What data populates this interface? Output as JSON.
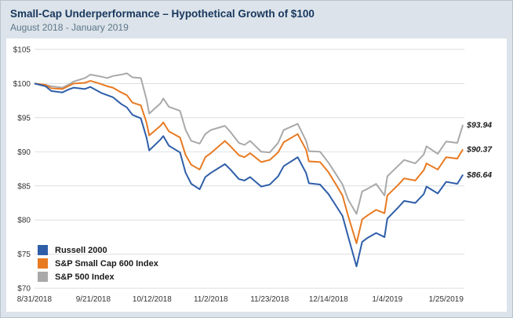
{
  "header": {
    "title": "Small-Cap Underperformance – Hypothetical Growth of $100",
    "subtitle": "August 2018 - January 2019"
  },
  "colors": {
    "background": "#dce3ea",
    "card": "#ffffff",
    "title": "#17375d",
    "subtitle": "#5d7789",
    "grid": "#d9dde1",
    "axis_text": "#333333",
    "end_label": "#1a1a1a"
  },
  "chart_data": {
    "type": "line",
    "title": "Small-Cap Underperformance – Hypothetical Growth of $100",
    "subtitle": "August 2018 - January 2019",
    "xlabel": "",
    "ylabel": "",
    "ylim": [
      70,
      105
    ],
    "y_tick_step": 5,
    "y_tick_prefix": "$",
    "grid": "horizontal",
    "legend_position": "lower-left",
    "x_tick_labels": [
      "8/31/2018",
      "9/21/2018",
      "10/12/2018",
      "11/2/2018",
      "11/23/2018",
      "12/14/2018",
      "1/4/2019",
      "1/25/2019"
    ],
    "dates": [
      "2018-08-31",
      "2018-09-04",
      "2018-09-06",
      "2018-09-10",
      "2018-09-12",
      "2018-09-14",
      "2018-09-18",
      "2018-09-20",
      "2018-09-24",
      "2018-09-26",
      "2018-09-28",
      "2018-10-01",
      "2018-10-03",
      "2018-10-05",
      "2018-10-08",
      "2018-10-10",
      "2018-10-11",
      "2018-10-15",
      "2018-10-16",
      "2018-10-18",
      "2018-10-22",
      "2018-10-24",
      "2018-10-26",
      "2018-10-29",
      "2018-10-31",
      "2018-11-02",
      "2018-11-07",
      "2018-11-09",
      "2018-11-12",
      "2018-11-14",
      "2018-11-16",
      "2018-11-20",
      "2018-11-23",
      "2018-11-26",
      "2018-11-28",
      "2018-12-03",
      "2018-12-06",
      "2018-12-07",
      "2018-12-11",
      "2018-12-14",
      "2018-12-17",
      "2018-12-19",
      "2018-12-21",
      "2018-12-24",
      "2018-12-26",
      "2018-12-28",
      "2018-12-31",
      "2019-01-03",
      "2019-01-04",
      "2019-01-08",
      "2019-01-10",
      "2019-01-14",
      "2019-01-17",
      "2019-01-18",
      "2019-01-22",
      "2019-01-25",
      "2019-01-29",
      "2019-01-31"
    ],
    "series": [
      {
        "name": "Russell 2000",
        "color": "#2e5ea8",
        "end_label": "$86.64",
        "end_value": 86.64,
        "values": [
          100,
          99.6,
          98.9,
          98.7,
          99.1,
          99.4,
          99.2,
          99.5,
          98.6,
          98.3,
          98.0,
          97.0,
          96.5,
          95.4,
          94.9,
          92.1,
          90.2,
          91.8,
          92.3,
          90.9,
          89.9,
          86.9,
          85.3,
          84.5,
          86.3,
          86.9,
          88.2,
          87.4,
          86.0,
          85.8,
          86.3,
          84.9,
          85.2,
          86.4,
          87.9,
          89.2,
          86.9,
          85.4,
          85.2,
          83.8,
          81.9,
          80.6,
          77.6,
          73.2,
          76.8,
          77.4,
          78.1,
          77.5,
          80.2,
          81.9,
          82.8,
          82.5,
          83.8,
          84.9,
          83.9,
          85.6,
          85.3,
          86.64
        ]
      },
      {
        "name": "S&P Small Cap 600 Index",
        "color": "#e87a22",
        "end_label": "$90.37",
        "end_value": 90.37,
        "values": [
          100,
          99.8,
          99.3,
          99.2,
          99.6,
          100.0,
          100.1,
          100.4,
          99.9,
          99.6,
          99.4,
          98.7,
          98.3,
          97.2,
          96.8,
          94.3,
          92.4,
          93.8,
          94.3,
          93.0,
          92.1,
          89.5,
          88.1,
          87.4,
          89.2,
          89.8,
          91.6,
          90.8,
          89.5,
          89.2,
          89.8,
          88.5,
          88.8,
          89.9,
          91.4,
          92.6,
          90.3,
          88.6,
          88.5,
          87.0,
          85.0,
          83.6,
          80.6,
          76.6,
          80.1,
          80.7,
          81.5,
          81.0,
          83.6,
          85.2,
          86.1,
          85.8,
          87.3,
          88.3,
          87.4,
          89.2,
          89.0,
          90.37
        ]
      },
      {
        "name": "S&P 500 Index",
        "color": "#a9a9a9",
        "end_label": "$93.94",
        "end_value": 93.94,
        "values": [
          100,
          99.8,
          99.6,
          99.4,
          99.8,
          100.3,
          100.8,
          101.3,
          101.0,
          100.8,
          101.1,
          101.3,
          101.5,
          100.9,
          100.8,
          97.7,
          95.6,
          97.1,
          97.8,
          96.6,
          96.0,
          93.2,
          91.6,
          91.2,
          92.6,
          93.2,
          93.8,
          92.9,
          91.3,
          91.0,
          91.6,
          90.0,
          89.9,
          91.3,
          93.2,
          94.1,
          91.6,
          90.1,
          90.0,
          88.4,
          86.5,
          85.2,
          83.0,
          80.9,
          84.2,
          84.6,
          85.3,
          83.6,
          86.4,
          88.0,
          88.8,
          88.3,
          89.6,
          90.8,
          89.7,
          91.5,
          91.3,
          93.94
        ]
      }
    ]
  }
}
